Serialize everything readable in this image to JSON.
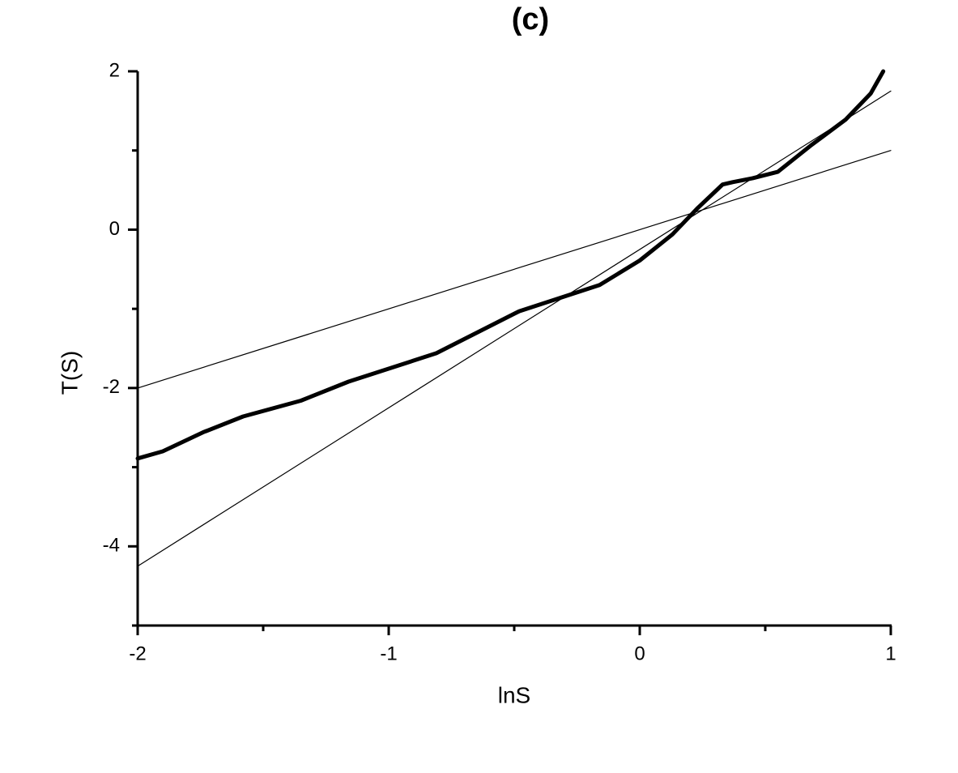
{
  "chart_data": {
    "type": "line",
    "title": "(c)",
    "x_label": "lnS",
    "y_label": "T(S)",
    "xlim": [
      -2,
      1
    ],
    "ylim": [
      -5,
      2
    ],
    "xticks": [
      -2,
      -1,
      0,
      1
    ],
    "yticks": [
      -4,
      -2,
      0,
      2
    ],
    "x_minor_ticks": [
      -1.5,
      -0.5,
      0.5
    ],
    "y_minor_ticks": [
      -5,
      -3,
      -1,
      1
    ],
    "series": [
      {
        "color": "#000000",
        "line_width": 5,
        "x": [
          -2,
          -1.9,
          -1.74,
          -1.58,
          -1.35,
          -1.16,
          -0.81,
          -0.48,
          -0.16,
          0,
          0.13,
          0.23,
          0.33,
          0.37,
          0.45,
          0.55,
          0.68,
          0.82,
          0.92,
          0.97
        ],
        "values": [
          -2.89,
          -2.8,
          -2.56,
          -2.36,
          -2.16,
          -1.92,
          -1.56,
          -1.03,
          -0.7,
          -0.39,
          -0.06,
          0.27,
          0.57,
          0.6,
          0.65,
          0.73,
          1.06,
          1.39,
          1.72,
          2.0
        ]
      },
      {
        "color": "#000000",
        "line_width": 1.2,
        "x": [
          -2,
          1
        ],
        "values": [
          -2,
          1
        ]
      },
      {
        "color": "#000000",
        "line_width": 1.2,
        "x": [
          -2,
          1
        ],
        "values": [
          -4.25,
          1.75
        ]
      }
    ]
  }
}
